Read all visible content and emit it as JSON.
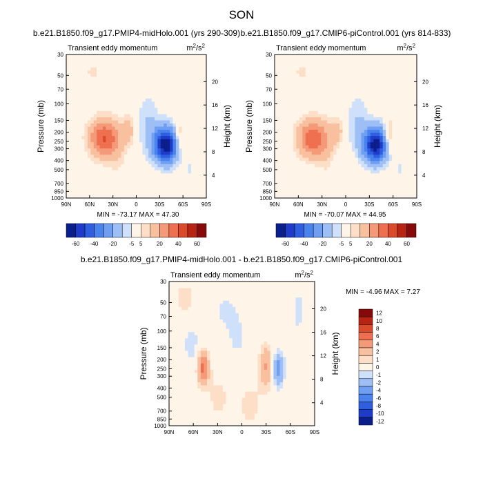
{
  "figure": {
    "season": "SON",
    "variable": "Transient eddy momentum",
    "units_base": "m",
    "units_sup1": "2",
    "units_mid": "/s",
    "units_sup2": "2"
  },
  "colors": {
    "scale_main": [
      "#0a1e8c",
      "#1e3cc8",
      "#2e5fe0",
      "#4a82ee",
      "#6f9ff2",
      "#9ebef6",
      "#cfe0fb",
      "#fff4e8",
      "#fddfc8",
      "#f9c0a0",
      "#f59a78",
      "#ee7050",
      "#dc4a2c",
      "#b82414",
      "#860a0a"
    ],
    "scale_diff": [
      "#0a1e8c",
      "#1e3cc8",
      "#2e5fe0",
      "#4a82ee",
      "#6f9ff2",
      "#9ebef6",
      "#cfe0fb",
      "#fff4e8",
      "#fddfc8",
      "#f9c0a0",
      "#f59a78",
      "#ee7050",
      "#dc4a2c",
      "#b82414",
      "#860a0a"
    ]
  },
  "chart_data": [
    {
      "type": "heatmap",
      "title": "b.e21.B1850.f09_g17.PMIP4-midHolo.001 (yrs 290-309)",
      "subtitle": "Transient eddy momentum",
      "xlabel": "",
      "ylabel": "Pressure (mb)",
      "ylabel_right": "Height (km)",
      "x_ticks": [
        "90N",
        "60N",
        "30N",
        "0",
        "30S",
        "60S",
        "90S"
      ],
      "y_ticks": [
        "30",
        "50",
        "70",
        "100",
        "150",
        "200",
        "250",
        "300",
        "400",
        "500",
        "700",
        "850",
        "1000"
      ],
      "y_ticks_right": [
        "20",
        "16",
        "12",
        "8",
        "4"
      ],
      "min": -73.17,
      "max": 47.3,
      "minmax_text": "MIN = -73.17  MAX = 47.30",
      "colorbar_labels": [
        "-60",
        "-40",
        "-20",
        "-5",
        "5",
        "20",
        "40",
        "60"
      ],
      "xlim": [
        90,
        -90
      ],
      "ylim": [
        1000,
        30
      ],
      "centers": [
        {
          "lat": 42,
          "p": 230,
          "amp": 40,
          "wlat": 13,
          "wlog": 0.32
        },
        {
          "lat": -38,
          "p": 270,
          "amp": -70,
          "wlat": 11,
          "wlog": 0.3
        },
        {
          "lat": 10,
          "p": 190,
          "amp": 14,
          "wlat": 6,
          "wlog": 0.25
        },
        {
          "lat": -55,
          "p": 230,
          "amp": 18,
          "wlat": 5,
          "wlog": 0.3
        },
        {
          "lat": -15,
          "p": 160,
          "amp": -10,
          "wlat": 10,
          "wlog": 0.5
        },
        {
          "lat": 55,
          "p": 45,
          "amp": 6,
          "wlat": 10,
          "wlog": 0.2
        },
        {
          "lat": 25,
          "p": 300,
          "amp": 8,
          "wlat": 8,
          "wlog": 0.4
        },
        {
          "lat": -70,
          "p": 500,
          "amp": -5,
          "wlat": 10,
          "wlog": 0.4
        }
      ]
    },
    {
      "type": "heatmap",
      "title": "b.e21.B1850.f09_g17.CMIP6-piControl.001 (yrs 814-833)",
      "subtitle": "Transient eddy momentum",
      "xlabel": "",
      "ylabel": "Pressure (mb)",
      "ylabel_right": "Height (km)",
      "x_ticks": [
        "90N",
        "60N",
        "30N",
        "0",
        "30S",
        "60S",
        "90S"
      ],
      "y_ticks": [
        "30",
        "50",
        "70",
        "100",
        "150",
        "200",
        "250",
        "300",
        "400",
        "500",
        "700",
        "850",
        "1000"
      ],
      "y_ticks_right": [
        "20",
        "16",
        "12",
        "8",
        "4"
      ],
      "min": -70.07,
      "max": 44.95,
      "minmax_text": "MIN = -70.07  MAX = 44.95",
      "colorbar_labels": [
        "-60",
        "-40",
        "-20",
        "-5",
        "5",
        "20",
        "40",
        "60"
      ],
      "xlim": [
        90,
        -90
      ],
      "ylim": [
        1000,
        30
      ],
      "centers": [
        {
          "lat": 42,
          "p": 230,
          "amp": 38,
          "wlat": 13,
          "wlog": 0.32
        },
        {
          "lat": -38,
          "p": 270,
          "amp": -67,
          "wlat": 11,
          "wlog": 0.3
        },
        {
          "lat": 10,
          "p": 190,
          "amp": 13,
          "wlat": 6,
          "wlog": 0.25
        },
        {
          "lat": -55,
          "p": 230,
          "amp": 20,
          "wlat": 5,
          "wlog": 0.3
        },
        {
          "lat": -15,
          "p": 160,
          "amp": -10,
          "wlat": 10,
          "wlog": 0.5
        },
        {
          "lat": 55,
          "p": 45,
          "amp": 6,
          "wlat": 10,
          "wlog": 0.2
        },
        {
          "lat": 25,
          "p": 300,
          "amp": 8,
          "wlat": 8,
          "wlog": 0.4
        },
        {
          "lat": -70,
          "p": 500,
          "amp": -5,
          "wlat": 10,
          "wlog": 0.4
        }
      ]
    },
    {
      "type": "heatmap",
      "title": "b.e21.B1850.f09_g17.PMIP4-midHolo.001 - b.e21.B1850.f09_g17.CMIP6-piControl.001",
      "subtitle": "Transient eddy momentum",
      "xlabel": "",
      "ylabel": "Pressure (mb)",
      "ylabel_right": "Height (km)",
      "x_ticks": [
        "90N",
        "60N",
        "30N",
        "0",
        "30S",
        "60S",
        "90S"
      ],
      "y_ticks": [
        "30",
        "50",
        "70",
        "100",
        "150",
        "200",
        "250",
        "300",
        "400",
        "500",
        "700",
        "850",
        "1000"
      ],
      "y_ticks_right": [
        "20",
        "16",
        "12",
        "8",
        "4"
      ],
      "min": -4.96,
      "max": 7.27,
      "minmax_text": "MIN = -4.96  MAX =  7.27",
      "colorbar_labels": [
        "12",
        "10",
        "8",
        "6",
        "4",
        "2",
        "1",
        "0",
        "-1",
        "-2",
        "-4",
        "-6",
        "-8",
        "-10",
        "-12"
      ],
      "xlim": [
        90,
        -90
      ],
      "ylim": [
        1000,
        30
      ],
      "centers": [
        {
          "lat": 48,
          "p": 240,
          "amp": 6.5,
          "wlat": 5,
          "wlog": 0.28
        },
        {
          "lat": 62,
          "p": 140,
          "amp": -1.5,
          "wlat": 8,
          "wlog": 0.4
        },
        {
          "lat": -30,
          "p": 230,
          "amp": 4,
          "wlat": 6,
          "wlog": 0.35
        },
        {
          "lat": -45,
          "p": 250,
          "amp": -5,
          "wlat": 5,
          "wlog": 0.3
        },
        {
          "lat": 70,
          "p": 45,
          "amp": 2,
          "wlat": 8,
          "wlog": 0.25
        },
        {
          "lat": 5,
          "p": 120,
          "amp": -1.2,
          "wlat": 12,
          "wlog": 0.5
        },
        {
          "lat": 30,
          "p": 500,
          "amp": 1.2,
          "wlat": 12,
          "wlog": 0.5
        },
        {
          "lat": -70,
          "p": 60,
          "amp": -1.5,
          "wlat": 6,
          "wlog": 0.4
        },
        {
          "lat": -10,
          "p": 600,
          "amp": 1.2,
          "wlat": 15,
          "wlog": 0.6
        },
        {
          "lat": 20,
          "p": 60,
          "amp": -1.2,
          "wlat": 10,
          "wlog": 0.3
        }
      ]
    }
  ]
}
